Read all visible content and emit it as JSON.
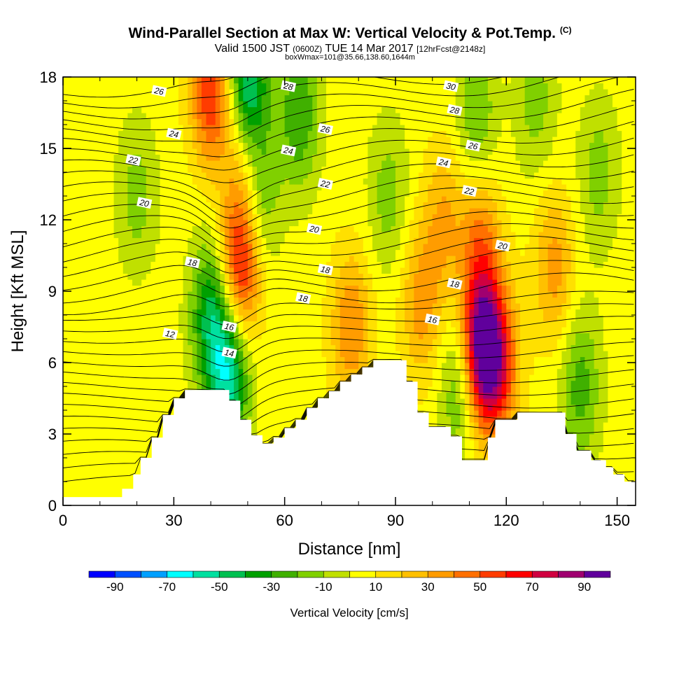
{
  "title": {
    "main": "Wind-Parallel Section at Max W: Vertical Velocity & Pot.Temp.",
    "tag": "(C)",
    "valid_prefix": "Valid 1500 JST",
    "valid_utc": "(0600Z)",
    "valid_date": "TUE 14 Mar 2017",
    "forecast": "[12hrFcst@2148z]",
    "box": "boxWmax=101@35.66,138.60,1644m"
  },
  "chart_data": {
    "type": "heatmap",
    "xlabel": "Distance [nm]",
    "ylabel": "Height [Kft MSL]",
    "xlim": [
      0,
      155
    ],
    "ylim": [
      0,
      18
    ],
    "xticks": [
      0,
      30,
      60,
      90,
      120,
      150
    ],
    "yticks": [
      0,
      3,
      6,
      9,
      12,
      15,
      18
    ],
    "colorbar": {
      "label": "Vertical Velocity [cm/s]",
      "ticks": [
        -90,
        -70,
        -50,
        -30,
        -10,
        10,
        30,
        50,
        70,
        90
      ],
      "bounds": [
        -100,
        100
      ],
      "step": 10,
      "colors": [
        "#0000ff",
        "#0050ff",
        "#00a0ff",
        "#00ffff",
        "#00e0a0",
        "#00c050",
        "#00a000",
        "#40b000",
        "#80d000",
        "#c0e000",
        "#ffff00",
        "#ffe000",
        "#ffc000",
        "#ff9c00",
        "#ff7000",
        "#ff3c00",
        "#ff0000",
        "#d00040",
        "#a00070",
        "#60009c"
      ]
    },
    "vertical_velocity": {
      "background": 5,
      "features": [
        {
          "x": 48,
          "y": 10,
          "value": 70
        },
        {
          "x": 49,
          "y": 15,
          "value": 40
        },
        {
          "x": 40,
          "y": 17.5,
          "value": 60
        },
        {
          "x": 40,
          "y": 8,
          "value": -40
        },
        {
          "x": 45,
          "y": 5.5,
          "value": -55
        },
        {
          "x": 50,
          "y": 17.5,
          "value": -65
        },
        {
          "x": 53,
          "y": 13,
          "value": -25
        },
        {
          "x": 64,
          "y": 16.5,
          "value": -30
        },
        {
          "x": 78,
          "y": 7.5,
          "value": 40
        },
        {
          "x": 97,
          "y": 8.5,
          "value": 35
        },
        {
          "x": 103,
          "y": 12,
          "value": 30
        },
        {
          "x": 113,
          "y": 6.5,
          "value": 95
        },
        {
          "x": 113,
          "y": 11,
          "value": 40
        },
        {
          "x": 118,
          "y": 6,
          "value": 55
        },
        {
          "x": 108,
          "y": 5,
          "value": -30
        },
        {
          "x": 112,
          "y": 16.5,
          "value": -20
        },
        {
          "x": 133,
          "y": 10,
          "value": 35
        },
        {
          "x": 140,
          "y": 5,
          "value": -25
        },
        {
          "x": 88,
          "y": 13,
          "value": -15
        },
        {
          "x": 20,
          "y": 13,
          "value": -15
        },
        {
          "x": 145,
          "y": 14,
          "value": -15
        },
        {
          "x": 128,
          "y": 17,
          "value": -15
        }
      ]
    },
    "potential_temperature": {
      "contour_labels": [
        {
          "x": 26,
          "y": 17.4,
          "text": "26"
        },
        {
          "x": 30,
          "y": 15.6,
          "text": "24"
        },
        {
          "x": 19,
          "y": 14.5,
          "text": "22"
        },
        {
          "x": 22,
          "y": 12.7,
          "text": "20"
        },
        {
          "x": 35,
          "y": 10.2,
          "text": "18"
        },
        {
          "x": 29,
          "y": 7.2,
          "text": "12"
        },
        {
          "x": 45,
          "y": 7.5,
          "text": "16"
        },
        {
          "x": 45,
          "y": 6.4,
          "text": "14"
        },
        {
          "x": 61,
          "y": 17.6,
          "text": "28"
        },
        {
          "x": 71,
          "y": 15.8,
          "text": "26"
        },
        {
          "x": 61,
          "y": 14.9,
          "text": "24"
        },
        {
          "x": 71,
          "y": 13.5,
          "text": "22"
        },
        {
          "x": 68,
          "y": 11.6,
          "text": "20"
        },
        {
          "x": 71,
          "y": 9.9,
          "text": "18"
        },
        {
          "x": 65,
          "y": 8.7,
          "text": "18"
        },
        {
          "x": 105,
          "y": 17.6,
          "text": "30"
        },
        {
          "x": 106,
          "y": 16.6,
          "text": "28"
        },
        {
          "x": 111,
          "y": 15.1,
          "text": "26"
        },
        {
          "x": 103,
          "y": 14.4,
          "text": "24"
        },
        {
          "x": 110,
          "y": 13.2,
          "text": "22"
        },
        {
          "x": 119,
          "y": 10.9,
          "text": "20"
        },
        {
          "x": 106,
          "y": 9.3,
          "text": "18"
        },
        {
          "x": 100,
          "y": 7.8,
          "text": "16"
        }
      ]
    },
    "terrain": [
      [
        0,
        0.35
      ],
      [
        16,
        0.35
      ],
      [
        16,
        0.7
      ],
      [
        19,
        0.7
      ],
      [
        19,
        1.3
      ],
      [
        21,
        1.3
      ],
      [
        21,
        2.0
      ],
      [
        24,
        2.0
      ],
      [
        24,
        2.85
      ],
      [
        27,
        2.85
      ],
      [
        27,
        3.8
      ],
      [
        30,
        3.8
      ],
      [
        30,
        4.5
      ],
      [
        33,
        4.5
      ],
      [
        33,
        4.85
      ],
      [
        45,
        4.85
      ],
      [
        45,
        4.4
      ],
      [
        48,
        4.4
      ],
      [
        48,
        3.6
      ],
      [
        51,
        3.6
      ],
      [
        51,
        2.95
      ],
      [
        54,
        2.95
      ],
      [
        54,
        2.6
      ],
      [
        57,
        2.6
      ],
      [
        57,
        2.85
      ],
      [
        60,
        2.85
      ],
      [
        60,
        3.25
      ],
      [
        63,
        3.25
      ],
      [
        63,
        3.6
      ],
      [
        66,
        3.6
      ],
      [
        66,
        4.1
      ],
      [
        69,
        4.1
      ],
      [
        69,
        4.5
      ],
      [
        72,
        4.5
      ],
      [
        72,
        4.8
      ],
      [
        75,
        4.8
      ],
      [
        75,
        5.2
      ],
      [
        78,
        5.2
      ],
      [
        78,
        5.5
      ],
      [
        81,
        5.5
      ],
      [
        81,
        5.8
      ],
      [
        84,
        5.8
      ],
      [
        84,
        6.1
      ],
      [
        93,
        6.1
      ],
      [
        93,
        5.2
      ],
      [
        96,
        5.2
      ],
      [
        96,
        3.9
      ],
      [
        99,
        3.9
      ],
      [
        99,
        3.3
      ],
      [
        105,
        3.3
      ],
      [
        105,
        2.9
      ],
      [
        108,
        2.9
      ],
      [
        108,
        1.9
      ],
      [
        115,
        1.9
      ],
      [
        115,
        2.85
      ],
      [
        117,
        2.85
      ],
      [
        117,
        3.6
      ],
      [
        123,
        3.6
      ],
      [
        123,
        3.9
      ],
      [
        136,
        3.9
      ],
      [
        136,
        3.0
      ],
      [
        139,
        3.0
      ],
      [
        139,
        2.3
      ],
      [
        143,
        2.3
      ],
      [
        143,
        1.9
      ],
      [
        147,
        1.9
      ],
      [
        147,
        1.6
      ],
      [
        149,
        1.6
      ],
      [
        149,
        1.3
      ],
      [
        152,
        1.3
      ],
      [
        152,
        1.0
      ],
      [
        155,
        1.0
      ]
    ]
  }
}
